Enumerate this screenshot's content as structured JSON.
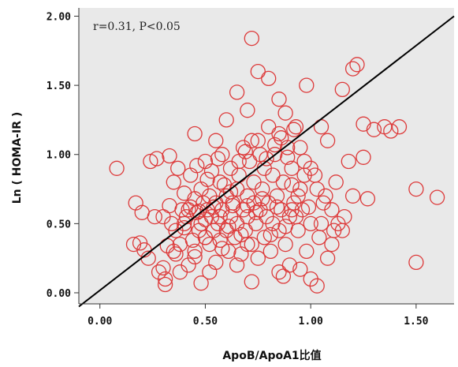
{
  "chart_data": {
    "type": "scatter",
    "xlabel": "ApoB/ApoA1比值",
    "ylabel": "Ln ( HOMA-IR )",
    "annotation": "r=0.31, P<0.05",
    "xlim": [
      -0.1,
      1.68
    ],
    "ylim": [
      -0.08,
      2.06
    ],
    "xticks": [
      "0.00",
      "0.50",
      "1.00",
      "1.50"
    ],
    "yticks": [
      "0.00",
      "0.50",
      "1.00",
      "1.50",
      "2.00"
    ],
    "grid": false,
    "colors": {
      "plot_bg": "#e9e9e9",
      "point": "#dd3a3a",
      "line": "#000000"
    },
    "fit_line": {
      "x": [
        -0.1,
        1.68
      ],
      "y": [
        -0.1,
        2.0
      ]
    },
    "points": [
      [
        0.08,
        0.9
      ],
      [
        0.16,
        0.35
      ],
      [
        0.17,
        0.65
      ],
      [
        0.19,
        0.36
      ],
      [
        0.2,
        0.58
      ],
      [
        0.21,
        0.31
      ],
      [
        0.23,
        0.25
      ],
      [
        0.24,
        0.95
      ],
      [
        0.26,
        0.55
      ],
      [
        0.27,
        0.97
      ],
      [
        0.28,
        0.15
      ],
      [
        0.3,
        0.18
      ],
      [
        0.31,
        0.06
      ],
      [
        0.31,
        0.1
      ],
      [
        0.32,
        0.34
      ],
      [
        0.33,
        0.99
      ],
      [
        0.33,
        0.63
      ],
      [
        0.35,
        0.8
      ],
      [
        0.35,
        0.3
      ],
      [
        0.36,
        0.45
      ],
      [
        0.37,
        0.9
      ],
      [
        0.38,
        0.35
      ],
      [
        0.4,
        0.5
      ],
      [
        0.4,
        0.47
      ],
      [
        0.41,
        0.55
      ],
      [
        0.42,
        0.6
      ],
      [
        0.43,
        0.62
      ],
      [
        0.44,
        0.38
      ],
      [
        0.45,
        0.68
      ],
      [
        0.45,
        0.26
      ],
      [
        0.47,
        0.59
      ],
      [
        0.47,
        0.45
      ],
      [
        0.48,
        0.5
      ],
      [
        0.48,
        0.75
      ],
      [
        0.49,
        0.65
      ],
      [
        0.5,
        0.53
      ],
      [
        0.5,
        0.4
      ],
      [
        0.51,
        0.82
      ],
      [
        0.51,
        0.6
      ],
      [
        0.52,
        0.7
      ],
      [
        0.52,
        0.35
      ],
      [
        0.53,
        0.55
      ],
      [
        0.54,
        0.45
      ],
      [
        0.55,
        0.65
      ],
      [
        0.55,
        0.22
      ],
      [
        0.56,
        0.5
      ],
      [
        0.57,
        0.8
      ],
      [
        0.57,
        0.38
      ],
      [
        0.58,
        0.6
      ],
      [
        0.58,
        1.0
      ],
      [
        0.6,
        0.45
      ],
      [
        0.6,
        0.7
      ],
      [
        0.61,
        0.3
      ],
      [
        0.62,
        0.9
      ],
      [
        0.62,
        0.55
      ],
      [
        0.63,
        0.65
      ],
      [
        0.64,
        0.4
      ],
      [
        0.65,
        0.75
      ],
      [
        0.65,
        0.5
      ],
      [
        0.66,
        0.85
      ],
      [
        0.67,
        0.28
      ],
      [
        0.68,
        0.6
      ],
      [
        0.68,
        1.05
      ],
      [
        0.69,
        0.45
      ],
      [
        0.7,
        0.7
      ],
      [
        0.7,
        0.55
      ],
      [
        0.71,
        0.95
      ],
      [
        0.72,
        0.35
      ],
      [
        0.73,
        0.65
      ],
      [
        0.73,
        0.8
      ],
      [
        0.74,
        0.5
      ],
      [
        0.75,
        1.1
      ],
      [
        0.75,
        0.25
      ],
      [
        0.76,
        0.6
      ],
      [
        0.77,
        0.75
      ],
      [
        0.78,
        0.4
      ],
      [
        0.78,
        0.9
      ],
      [
        0.79,
        0.55
      ],
      [
        0.8,
        1.2
      ],
      [
        0.8,
        0.65
      ],
      [
        0.81,
        0.3
      ],
      [
        0.82,
        0.85
      ],
      [
        0.82,
        0.5
      ],
      [
        0.83,
        1.0
      ],
      [
        0.84,
        0.7
      ],
      [
        0.85,
        0.45
      ],
      [
        0.85,
        1.15
      ],
      [
        0.86,
        0.6
      ],
      [
        0.87,
        0.8
      ],
      [
        0.88,
        0.35
      ],
      [
        0.89,
        1.05
      ],
      [
        0.9,
        0.55
      ],
      [
        0.9,
        0.2
      ],
      [
        0.91,
        0.9
      ],
      [
        0.92,
        0.65
      ],
      [
        0.93,
        1.2
      ],
      [
        0.94,
        0.45
      ],
      [
        0.95,
        0.75
      ],
      [
        0.96,
        0.6
      ],
      [
        0.97,
        0.95
      ],
      [
        0.98,
        0.3
      ],
      [
        1.0,
        0.5
      ],
      [
        1.02,
        0.85
      ],
      [
        1.04,
        0.4
      ],
      [
        1.06,
        0.65
      ],
      [
        1.08,
        0.25
      ],
      [
        1.1,
        0.6
      ],
      [
        1.12,
        0.8
      ],
      [
        1.15,
        0.45
      ],
      [
        1.18,
        0.95
      ],
      [
        1.2,
        0.7
      ],
      [
        1.25,
        0.98
      ],
      [
        0.45,
        1.15
      ],
      [
        0.5,
        0.95
      ],
      [
        0.55,
        1.1
      ],
      [
        0.6,
        1.25
      ],
      [
        0.65,
        1.45
      ],
      [
        0.7,
        1.32
      ],
      [
        0.72,
        1.84
      ],
      [
        0.75,
        1.6
      ],
      [
        0.8,
        1.55
      ],
      [
        0.85,
        1.4
      ],
      [
        0.88,
        1.3
      ],
      [
        0.92,
        1.18
      ],
      [
        0.95,
        1.05
      ],
      [
        0.98,
        1.5
      ],
      [
        1.05,
        1.2
      ],
      [
        1.08,
        1.1
      ],
      [
        1.15,
        1.47
      ],
      [
        1.2,
        1.62
      ],
      [
        1.22,
        1.65
      ],
      [
        1.25,
        1.22
      ],
      [
        1.3,
        1.18
      ],
      [
        1.35,
        1.2
      ],
      [
        1.38,
        1.17
      ],
      [
        1.42,
        1.2
      ],
      [
        1.5,
        0.75
      ],
      [
        1.5,
        0.22
      ],
      [
        1.6,
        0.69
      ],
      [
        1.27,
        0.68
      ],
      [
        0.95,
        0.17
      ],
      [
        1.0,
        0.1
      ],
      [
        1.03,
        0.05
      ],
      [
        0.87,
        0.12
      ],
      [
        0.85,
        0.15
      ],
      [
        0.72,
        0.08
      ],
      [
        0.7,
        0.35
      ],
      [
        0.65,
        0.2
      ],
      [
        0.58,
        0.32
      ],
      [
        0.52,
        0.15
      ],
      [
        0.48,
        0.07
      ],
      [
        0.45,
        0.3
      ],
      [
        0.42,
        0.2
      ],
      [
        0.38,
        0.15
      ],
      [
        0.36,
        0.28
      ],
      [
        0.4,
        0.72
      ],
      [
        0.43,
        0.85
      ],
      [
        0.46,
        0.92
      ],
      [
        0.5,
        0.4
      ],
      [
        0.53,
        0.88
      ],
      [
        0.56,
        0.97
      ],
      [
        0.59,
        0.78
      ],
      [
        0.62,
        0.73
      ],
      [
        0.66,
        0.95
      ],
      [
        0.69,
        1.02
      ],
      [
        0.72,
        1.1
      ],
      [
        0.76,
        1.0
      ],
      [
        0.79,
        0.97
      ],
      [
        0.83,
        1.07
      ],
      [
        0.86,
        1.12
      ],
      [
        0.89,
        0.98
      ],
      [
        0.91,
        0.78
      ],
      [
        0.94,
        0.7
      ],
      [
        0.97,
        0.85
      ],
      [
        1.0,
        0.9
      ],
      [
        1.03,
        0.75
      ],
      [
        1.07,
        0.7
      ],
      [
        1.1,
        0.35
      ],
      [
        1.13,
        0.5
      ],
      [
        1.16,
        0.55
      ],
      [
        0.3,
        0.55
      ],
      [
        0.34,
        0.5
      ],
      [
        0.39,
        0.6
      ],
      [
        0.46,
        0.58
      ],
      [
        0.54,
        0.62
      ],
      [
        0.61,
        0.48
      ],
      [
        0.67,
        0.42
      ],
      [
        0.74,
        0.58
      ],
      [
        0.81,
        0.42
      ],
      [
        0.88,
        0.48
      ],
      [
        0.93,
        0.55
      ],
      [
        0.99,
        0.62
      ],
      [
        1.05,
        0.5
      ],
      [
        1.11,
        0.45
      ],
      [
        0.57,
        0.55
      ],
      [
        0.63,
        0.63
      ],
      [
        0.7,
        0.63
      ],
      [
        0.77,
        0.68
      ],
      [
        0.84,
        0.62
      ],
      [
        0.91,
        0.6
      ]
    ]
  }
}
